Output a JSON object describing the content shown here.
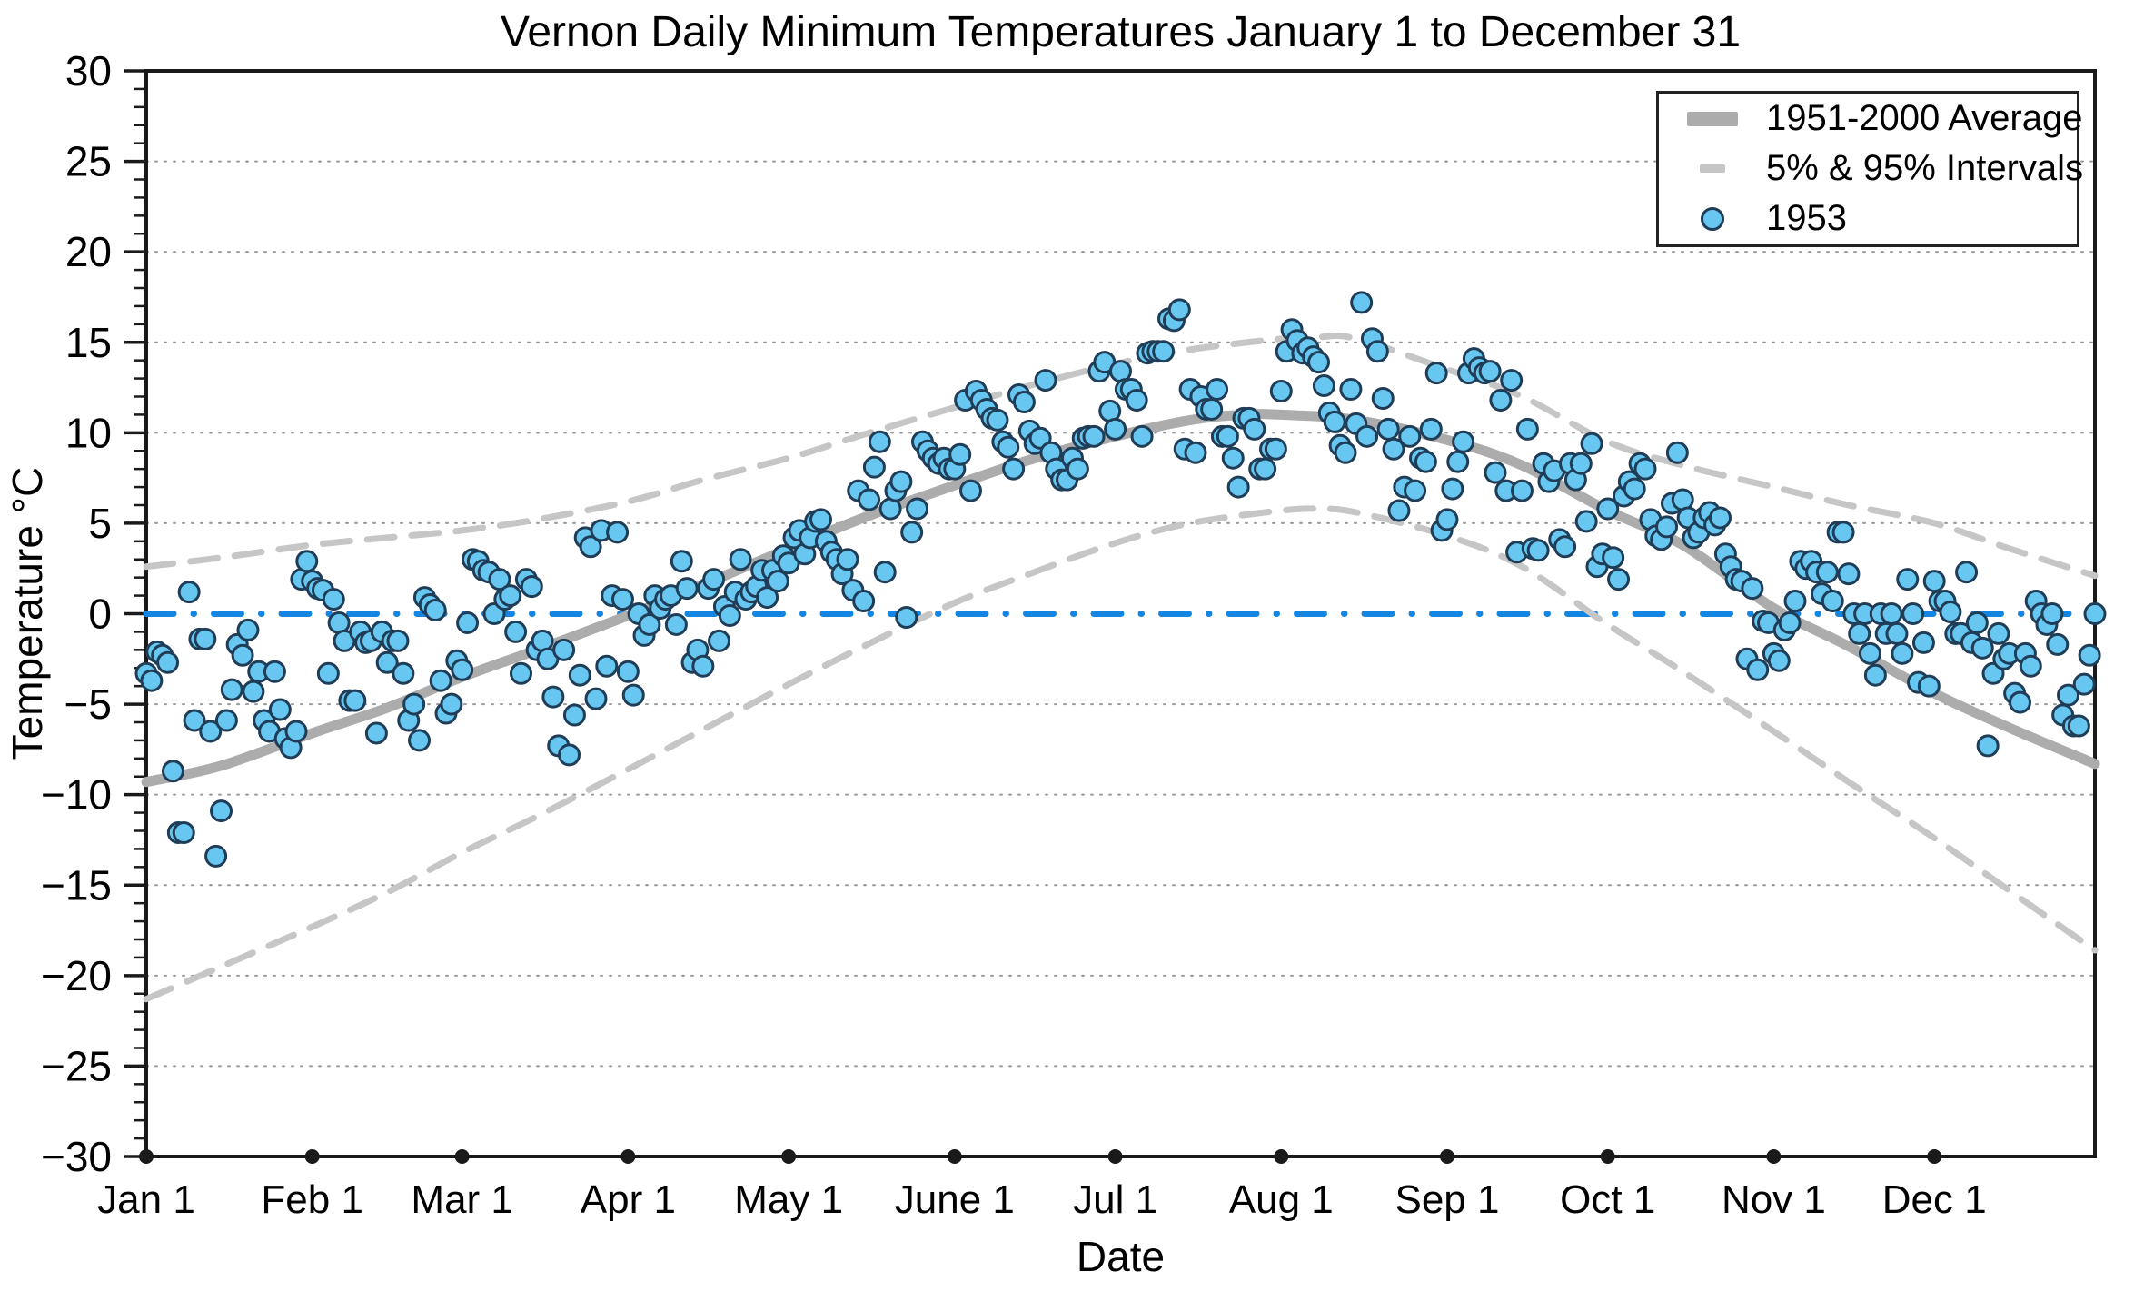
{
  "title": "Vernon Daily Minimum Temperatures January 1 to December 31",
  "axes": {
    "x": {
      "label": "Date",
      "ticks": [
        {
          "label": "Jan 1",
          "day": 1
        },
        {
          "label": "Feb 1",
          "day": 32
        },
        {
          "label": "Mar 1",
          "day": 60
        },
        {
          "label": "Apr 1",
          "day": 91
        },
        {
          "label": "May 1",
          "day": 121
        },
        {
          "label": "June 1",
          "day": 152
        },
        {
          "label": "Jul 1",
          "day": 182
        },
        {
          "label": "Aug 1",
          "day": 213
        },
        {
          "label": "Sep 1",
          "day": 244
        },
        {
          "label": "Oct 1",
          "day": 274
        },
        {
          "label": "Nov 1",
          "day": 305
        },
        {
          "label": "Dec 1",
          "day": 335
        }
      ]
    },
    "y": {
      "label": "Temperature °C",
      "min": -30,
      "max": 30,
      "major_tick_step": 5,
      "minor_tick_step": 1,
      "tick_labels": [
        {
          "value": 30,
          "label": "30"
        },
        {
          "value": 25,
          "label": "25"
        },
        {
          "value": 20,
          "label": "20"
        },
        {
          "value": 15,
          "label": "15"
        },
        {
          "value": 10,
          "label": "10"
        },
        {
          "value": 5,
          "label": "5"
        },
        {
          "value": 0,
          "label": "0"
        },
        {
          "value": -5,
          "label": "−5"
        },
        {
          "value": -10,
          "label": "−10"
        },
        {
          "value": -15,
          "label": "−15"
        },
        {
          "value": -20,
          "label": "−20"
        },
        {
          "value": -25,
          "label": "−25"
        },
        {
          "value": -30,
          "label": "−30"
        }
      ]
    }
  },
  "legend": [
    {
      "label": "1951-2000 Average",
      "swatch": "thick-line"
    },
    {
      "label": "5% & 95% Intervals",
      "swatch": "dashed-line"
    },
    {
      "label": "1953",
      "swatch": "dot"
    }
  ],
  "colors": {
    "scatter_fill": "#67C7F1",
    "scatter_stroke": "#1F3D57",
    "zero_line": "#1585E2",
    "average": "#ACACAC",
    "interval": "#C6C6C6",
    "gridline": "#999999",
    "axis": "#1A1A1A",
    "text": "#000000"
  },
  "chart_data": {
    "type": "scatter",
    "title": "Vernon Daily Minimum Temperatures January 1 to December 31",
    "xlabel": "Date",
    "ylabel": "Temperature °C",
    "x_unit": "day_of_year",
    "x_range": [
      1,
      365
    ],
    "ylim": [
      -30,
      30
    ],
    "grid": "dotted horizontal every 5°C",
    "legend_position": "top-right",
    "zero_reference_line": 0,
    "series": [
      {
        "name": "1951-2000 Average",
        "type": "line",
        "style": "thick-gray",
        "points": [
          [
            1,
            -9.3
          ],
          [
            15,
            -8.4
          ],
          [
            32,
            -6.6
          ],
          [
            46,
            -5.2
          ],
          [
            60,
            -3.5
          ],
          [
            74,
            -2.0
          ],
          [
            91,
            -0.1
          ],
          [
            105,
            1.6
          ],
          [
            121,
            3.6
          ],
          [
            135,
            5.3
          ],
          [
            152,
            7.1
          ],
          [
            166,
            8.5
          ],
          [
            182,
            9.8
          ],
          [
            196,
            10.7
          ],
          [
            206,
            11.0
          ],
          [
            213,
            11.0
          ],
          [
            227,
            10.7
          ],
          [
            244,
            9.6
          ],
          [
            258,
            8.2
          ],
          [
            274,
            5.7
          ],
          [
            288,
            3.8
          ],
          [
            305,
            0.3
          ],
          [
            319,
            -1.8
          ],
          [
            335,
            -4.4
          ],
          [
            349,
            -6.3
          ],
          [
            365,
            -8.3
          ]
        ]
      },
      {
        "name": "95% Interval",
        "type": "line",
        "style": "dashed-gray",
        "points": [
          [
            1,
            2.6
          ],
          [
            15,
            3.1
          ],
          [
            32,
            3.8
          ],
          [
            46,
            4.2
          ],
          [
            60,
            4.6
          ],
          [
            74,
            5.2
          ],
          [
            91,
            6.2
          ],
          [
            105,
            7.4
          ],
          [
            121,
            8.6
          ],
          [
            135,
            9.9
          ],
          [
            152,
            11.4
          ],
          [
            166,
            12.6
          ],
          [
            182,
            13.8
          ],
          [
            196,
            14.6
          ],
          [
            213,
            15.2
          ],
          [
            220,
            15.3
          ],
          [
            227,
            15.2
          ],
          [
            244,
            13.5
          ],
          [
            258,
            12.0
          ],
          [
            274,
            9.5
          ],
          [
            288,
            8.2
          ],
          [
            305,
            7.0
          ],
          [
            319,
            6.0
          ],
          [
            335,
            5.0
          ],
          [
            349,
            3.6
          ],
          [
            365,
            2.1
          ]
        ]
      },
      {
        "name": "5% Interval",
        "type": "line",
        "style": "dashed-gray",
        "points": [
          [
            1,
            -21.3
          ],
          [
            15,
            -19.5
          ],
          [
            32,
            -17.3
          ],
          [
            46,
            -15.4
          ],
          [
            60,
            -13.2
          ],
          [
            74,
            -11.2
          ],
          [
            91,
            -8.6
          ],
          [
            105,
            -6.4
          ],
          [
            121,
            -3.9
          ],
          [
            135,
            -1.8
          ],
          [
            152,
            0.6
          ],
          [
            166,
            2.2
          ],
          [
            182,
            3.9
          ],
          [
            196,
            5.0
          ],
          [
            213,
            5.7
          ],
          [
            220,
            5.8
          ],
          [
            227,
            5.6
          ],
          [
            244,
            4.3
          ],
          [
            258,
            2.6
          ],
          [
            274,
            -0.6
          ],
          [
            288,
            -3.2
          ],
          [
            305,
            -6.5
          ],
          [
            319,
            -9.3
          ],
          [
            335,
            -12.4
          ],
          [
            349,
            -15.3
          ],
          [
            365,
            -18.6
          ]
        ]
      },
      {
        "name": "1953",
        "type": "scatter",
        "start_day": 1,
        "values": [
          -3.3,
          -3.7,
          -2.1,
          -2.3,
          -2.7,
          -8.7,
          -12.1,
          -12.1,
          1.2,
          -5.9,
          -1.4,
          -1.4,
          -6.5,
          -13.4,
          -10.9,
          -5.9,
          -4.2,
          -1.7,
          -2.3,
          -0.9,
          -4.3,
          -3.2,
          -5.9,
          -6.5,
          -3.2,
          -5.3,
          -6.9,
          -7.4,
          -6.5,
          1.9,
          2.9,
          1.8,
          1.4,
          1.3,
          -3.3,
          0.8,
          -0.5,
          -1.5,
          -4.8,
          -4.8,
          -1.0,
          -1.6,
          -1.5,
          -6.6,
          -1.0,
          -2.7,
          -1.5,
          -1.5,
          -3.3,
          -5.9,
          -5.0,
          -7.0,
          0.9,
          0.5,
          0.2,
          -3.7,
          -5.5,
          -5.0,
          -2.6,
          -3.1,
          -0.5,
          3.0,
          2.9,
          2.4,
          2.3,
          0.0,
          1.9,
          0.8,
          1.0,
          -1.0,
          -3.3,
          1.9,
          1.5,
          -2.0,
          -1.5,
          -2.5,
          -4.6,
          -7.3,
          -2.0,
          -7.8,
          -5.6,
          -3.4,
          4.2,
          3.7,
          -4.7,
          4.6,
          -2.9,
          1.0,
          4.5,
          0.8,
          -3.2,
          -4.5,
          0.0,
          -1.2,
          -0.6,
          1.0,
          0.3,
          0.8,
          1.0,
          -0.6,
          2.9,
          1.4,
          -2.7,
          -2.0,
          -2.9,
          1.4,
          1.9,
          -1.5,
          0.4,
          -0.1,
          1.2,
          3.0,
          0.8,
          1.2,
          1.5,
          2.4,
          0.9,
          2.4,
          1.8,
          3.2,
          2.8,
          4.2,
          4.6,
          3.3,
          4.2,
          5.1,
          5.2,
          4.0,
          3.4,
          3.0,
          2.2,
          3.0,
          1.3,
          6.8,
          0.7,
          6.3,
          8.1,
          9.5,
          2.3,
          5.8,
          6.8,
          7.3,
          -0.2,
          4.5,
          5.8,
          9.5,
          9.0,
          8.6,
          8.3,
          8.6,
          8.0,
          8.0,
          8.8,
          11.8,
          6.8,
          12.3,
          11.8,
          11.3,
          10.8,
          10.7,
          9.5,
          9.2,
          8.0,
          12.1,
          11.7,
          10.1,
          9.4,
          9.7,
          12.9,
          8.9,
          8.0,
          7.4,
          7.4,
          8.6,
          8.0,
          9.7,
          9.8,
          9.8,
          13.4,
          13.9,
          11.2,
          10.2,
          13.4,
          12.4,
          12.4,
          11.8,
          9.8,
          14.4,
          14.5,
          14.5,
          14.5,
          16.3,
          16.2,
          16.8,
          9.1,
          12.4,
          8.9,
          12.0,
          11.3,
          11.3,
          12.4,
          9.8,
          9.8,
          8.6,
          7.0,
          10.8,
          10.8,
          10.2,
          8.0,
          8.0,
          9.1,
          9.1,
          12.3,
          14.5,
          15.7,
          15.1,
          14.4,
          14.7,
          14.2,
          13.9,
          12.6,
          11.1,
          10.6,
          9.3,
          8.9,
          12.4,
          10.5,
          17.2,
          9.8,
          15.2,
          14.5,
          11.9,
          10.2,
          9.1,
          5.7,
          7.0,
          9.8,
          6.8,
          8.6,
          8.4,
          10.2,
          13.3,
          4.6,
          5.2,
          6.9,
          8.4,
          9.5,
          13.3,
          14.1,
          13.6,
          13.3,
          13.4,
          7.8,
          11.8,
          6.8,
          12.9,
          3.4,
          6.8,
          10.2,
          3.6,
          3.5,
          8.3,
          7.3,
          7.9,
          4.1,
          3.7,
          8.3,
          7.4,
          8.3,
          5.1,
          9.4,
          2.6,
          3.3,
          5.8,
          3.1,
          1.9,
          6.5,
          7.3,
          6.9,
          8.3,
          8.0,
          5.2,
          4.3,
          4.1,
          4.8,
          6.1,
          8.9,
          6.3,
          5.3,
          4.2,
          4.5,
          5.3,
          5.6,
          4.9,
          5.3,
          3.3,
          2.6,
          1.9,
          1.8,
          -2.5,
          1.4,
          -3.1,
          -0.4,
          -0.5,
          -2.2,
          -2.6,
          -0.9,
          -0.5,
          0.7,
          2.9,
          2.5,
          2.9,
          2.3,
          1.1,
          2.3,
          0.7,
          4.5,
          4.5,
          2.2,
          0.0,
          -1.1,
          0.0,
          -2.2,
          -3.4,
          0.0,
          -1.1,
          0.0,
          -1.1,
          -2.2,
          1.9,
          0.0,
          -3.8,
          -1.6,
          -4.0,
          1.8,
          0.7,
          0.7,
          0.1,
          -1.1,
          -1.1,
          2.3,
          -1.6,
          -0.5,
          -1.9,
          -7.3,
          -3.3,
          -1.1,
          -2.5,
          -2.2,
          -4.4,
          -4.9,
          -2.2,
          -2.9,
          0.7,
          0.0,
          -0.6,
          0.0,
          -1.7,
          -5.6,
          -4.5,
          -6.2,
          -6.2,
          -3.9,
          -2.3,
          0.0
        ]
      }
    ]
  }
}
